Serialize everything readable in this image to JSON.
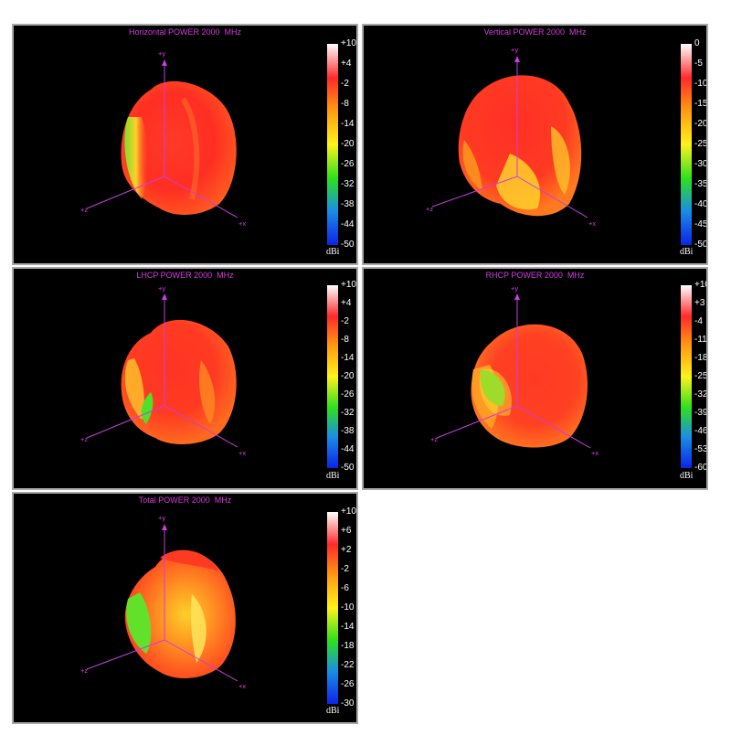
{
  "unit": "dBi",
  "axes": {
    "y": "+y",
    "x": "+x",
    "z": "+z"
  },
  "colorscale": [
    "#ffffff",
    "#ff2a2a",
    "#ff9a10",
    "#fff21a",
    "#2de01d",
    "#1a8de6",
    "#0c24e6"
  ],
  "panels": [
    {
      "title": "Horizontal POWER 2000  MHz",
      "ticks": [
        "+10",
        "+4",
        "-2",
        "-8",
        "-14",
        "-20",
        "-26",
        "-32",
        "-38",
        "-44",
        "-50"
      ]
    },
    {
      "title": "Vertical POWER 2000  MHz",
      "ticks": [
        "0",
        "-5",
        "-10",
        "-15",
        "-20",
        "-25",
        "-30",
        "-35",
        "-40",
        "-45",
        "-50"
      ]
    },
    {
      "title": "LHCP POWER 2000  MHz",
      "ticks": [
        "+10",
        "+4",
        "-2",
        "-8",
        "-14",
        "-20",
        "-26",
        "-32",
        "-38",
        "-44",
        "-50"
      ]
    },
    {
      "title": "RHCP POWER 2000  MHz",
      "ticks": [
        "+10",
        "+3",
        "-4",
        "-11",
        "-18",
        "-25",
        "-32",
        "-39",
        "-46",
        "-53",
        "-60"
      ]
    },
    {
      "title": "Total POWER 2000  MHz",
      "ticks": [
        "+10",
        "+6",
        "+2",
        "-2",
        "-6",
        "-10",
        "-14",
        "-18",
        "-22",
        "-26",
        "-30"
      ]
    }
  ]
}
